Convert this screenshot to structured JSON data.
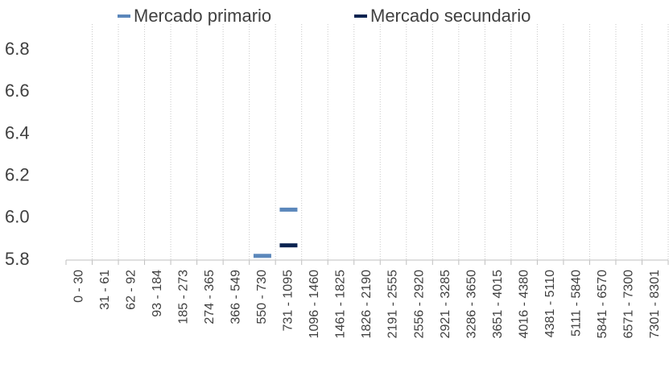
{
  "chart_data": {
    "type": "line",
    "marker": "dash",
    "categories": [
      "0 - 30",
      "31 - 61",
      "62 - 92",
      "93 - 184",
      "185 - 273",
      "274 - 365",
      "366 - 549",
      "550 - 730",
      "731 - 1095",
      "1096 - 1460",
      "1461 - 1825",
      "1826 - 2190",
      "2191 - 2555",
      "2556 - 2920",
      "2921 - 3285",
      "3286 - 3650",
      "3651 - 4015",
      "4016 - 4380",
      "4381 - 5110",
      "5111 - 5840",
      "5841 - 6570",
      "6571 - 7300",
      "7301 - 8301"
    ],
    "series": [
      {
        "name": "Mercado primario",
        "color": "#5b87bb",
        "values": [
          null,
          null,
          null,
          null,
          null,
          null,
          null,
          5.82,
          6.04,
          null,
          null,
          null,
          null,
          null,
          null,
          null,
          null,
          null,
          null,
          null,
          null,
          null,
          null
        ]
      },
      {
        "name": "Mercado secundario",
        "color": "#0b2350",
        "values": [
          null,
          null,
          null,
          null,
          null,
          null,
          null,
          null,
          5.87,
          null,
          null,
          null,
          null,
          null,
          null,
          null,
          null,
          null,
          null,
          null,
          null,
          null,
          null
        ]
      }
    ],
    "ylim": [
      5.8,
      6.9
    ],
    "yticks": [
      5.8,
      {
        "value": 6,
        "label": "6.0"
      },
      6.2,
      6.4,
      6.6,
      6.8
    ],
    "grid": "x",
    "legend": "top"
  }
}
